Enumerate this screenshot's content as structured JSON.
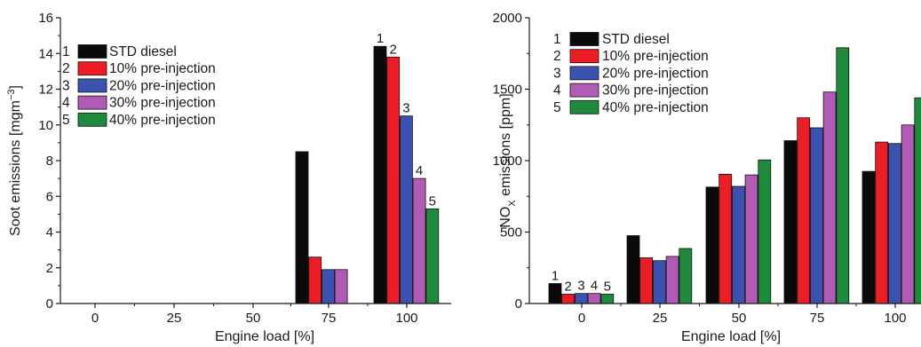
{
  "chart_data": [
    {
      "type": "bar",
      "title": "",
      "xlabel": "Engine load [%]",
      "ylabel_main": "Soot emissions [mgm",
      "ylabel_sup": "−3",
      "ylabel_close": "]",
      "ylim": [
        0,
        16
      ],
      "yticks": [
        "0",
        "2",
        "4",
        "6",
        "8",
        "10",
        "12",
        "14",
        "16"
      ],
      "categories": [
        "0",
        "25",
        "50",
        "75",
        "100"
      ],
      "series": [
        {
          "name": "STD diesel",
          "values": [
            0,
            0,
            0,
            8.5,
            14.4
          ]
        },
        {
          "name": "10% pre-injection",
          "values": [
            0,
            0,
            0,
            2.6,
            13.8
          ]
        },
        {
          "name": "20% pre-injection",
          "values": [
            0,
            0,
            0,
            1.9,
            10.5
          ]
        },
        {
          "name": "30% pre-injection",
          "values": [
            0,
            0,
            0,
            1.9,
            7.0
          ]
        },
        {
          "name": "40% pre-injection",
          "values": [
            0,
            0,
            0,
            0,
            5.3
          ]
        }
      ],
      "series_numbers": [
        "1",
        "2",
        "3",
        "4",
        "5"
      ],
      "bar_labels": [
        {
          "category": "100",
          "series": 0,
          "text": "1"
        },
        {
          "category": "100",
          "series": 1,
          "text": "2"
        },
        {
          "category": "100",
          "series": 2,
          "text": "3"
        },
        {
          "category": "100",
          "series": 3,
          "text": "4"
        },
        {
          "category": "100",
          "series": 4,
          "text": "5"
        }
      ],
      "legend_position": "top-left",
      "grid": false
    },
    {
      "type": "bar",
      "title": "",
      "xlabel": "Engine load [%]",
      "ylabel_main": "NO",
      "ylabel_sub": "X",
      "ylabel_rest": " emissions [ppm]",
      "ylim": [
        0,
        2000
      ],
      "yticks": [
        "0",
        "500",
        "1000",
        "1500",
        "2000"
      ],
      "categories": [
        "0",
        "25",
        "50",
        "75",
        "100"
      ],
      "series": [
        {
          "name": "STD diesel",
          "values": [
            140,
            475,
            815,
            1140,
            925
          ]
        },
        {
          "name": "10% pre-injection",
          "values": [
            65,
            320,
            905,
            1300,
            1130
          ]
        },
        {
          "name": "20% pre-injection",
          "values": [
            70,
            300,
            820,
            1230,
            1120
          ]
        },
        {
          "name": "30% pre-injection",
          "values": [
            70,
            330,
            900,
            1480,
            1250
          ]
        },
        {
          "name": "40% pre-injection",
          "values": [
            65,
            385,
            1005,
            1790,
            1440
          ]
        }
      ],
      "series_numbers": [
        "1",
        "2",
        "3",
        "4",
        "5"
      ],
      "bar_labels": [
        {
          "category": "0",
          "series": 0,
          "text": "1"
        },
        {
          "category": "0",
          "series": 1,
          "text": "2"
        },
        {
          "category": "0",
          "series": 2,
          "text": "3"
        },
        {
          "category": "0",
          "series": 3,
          "text": "4"
        },
        {
          "category": "0",
          "series": 4,
          "text": "5"
        }
      ],
      "legend_position": "top-left",
      "grid": false
    }
  ],
  "colors": {
    "series": [
      "#0a0a0a",
      "#ee1c25",
      "#3a53b0",
      "#b15ab6",
      "#1e8a3c"
    ],
    "axis": "#1a1a1a"
  }
}
